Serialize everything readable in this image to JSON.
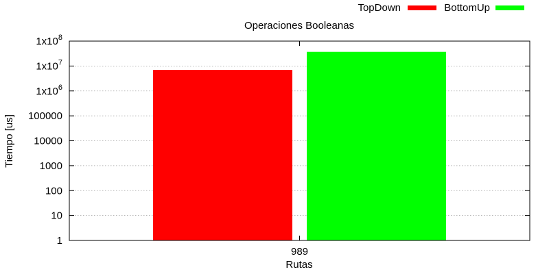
{
  "chart_data": {
    "type": "bar",
    "title": "Operaciones Booleanas",
    "xlabel": "Rutas",
    "ylabel": "Tiempo [us]",
    "categories": [
      "989"
    ],
    "series": [
      {
        "name": "TopDown",
        "values": [
          7000000
        ],
        "color": "#ff0000"
      },
      {
        "name": "BottomUp",
        "values": [
          37000000
        ],
        "color": "#00ff00"
      }
    ],
    "yscale": "log",
    "ylim": [
      1,
      100000000
    ],
    "y_ticks": [
      {
        "value": 1,
        "label": "1",
        "sup": ""
      },
      {
        "value": 10,
        "label": "10",
        "sup": ""
      },
      {
        "value": 100,
        "label": "100",
        "sup": ""
      },
      {
        "value": 1000,
        "label": "1000",
        "sup": ""
      },
      {
        "value": 10000,
        "label": "10000",
        "sup": ""
      },
      {
        "value": 100000,
        "label": "100000",
        "sup": ""
      },
      {
        "value": 1000000,
        "label": "1x10",
        "sup": "6"
      },
      {
        "value": 10000000,
        "label": "1x10",
        "sup": "7"
      },
      {
        "value": 100000000,
        "label": "1x10",
        "sup": "8"
      }
    ],
    "grid": true,
    "legend_position": "top-right"
  }
}
